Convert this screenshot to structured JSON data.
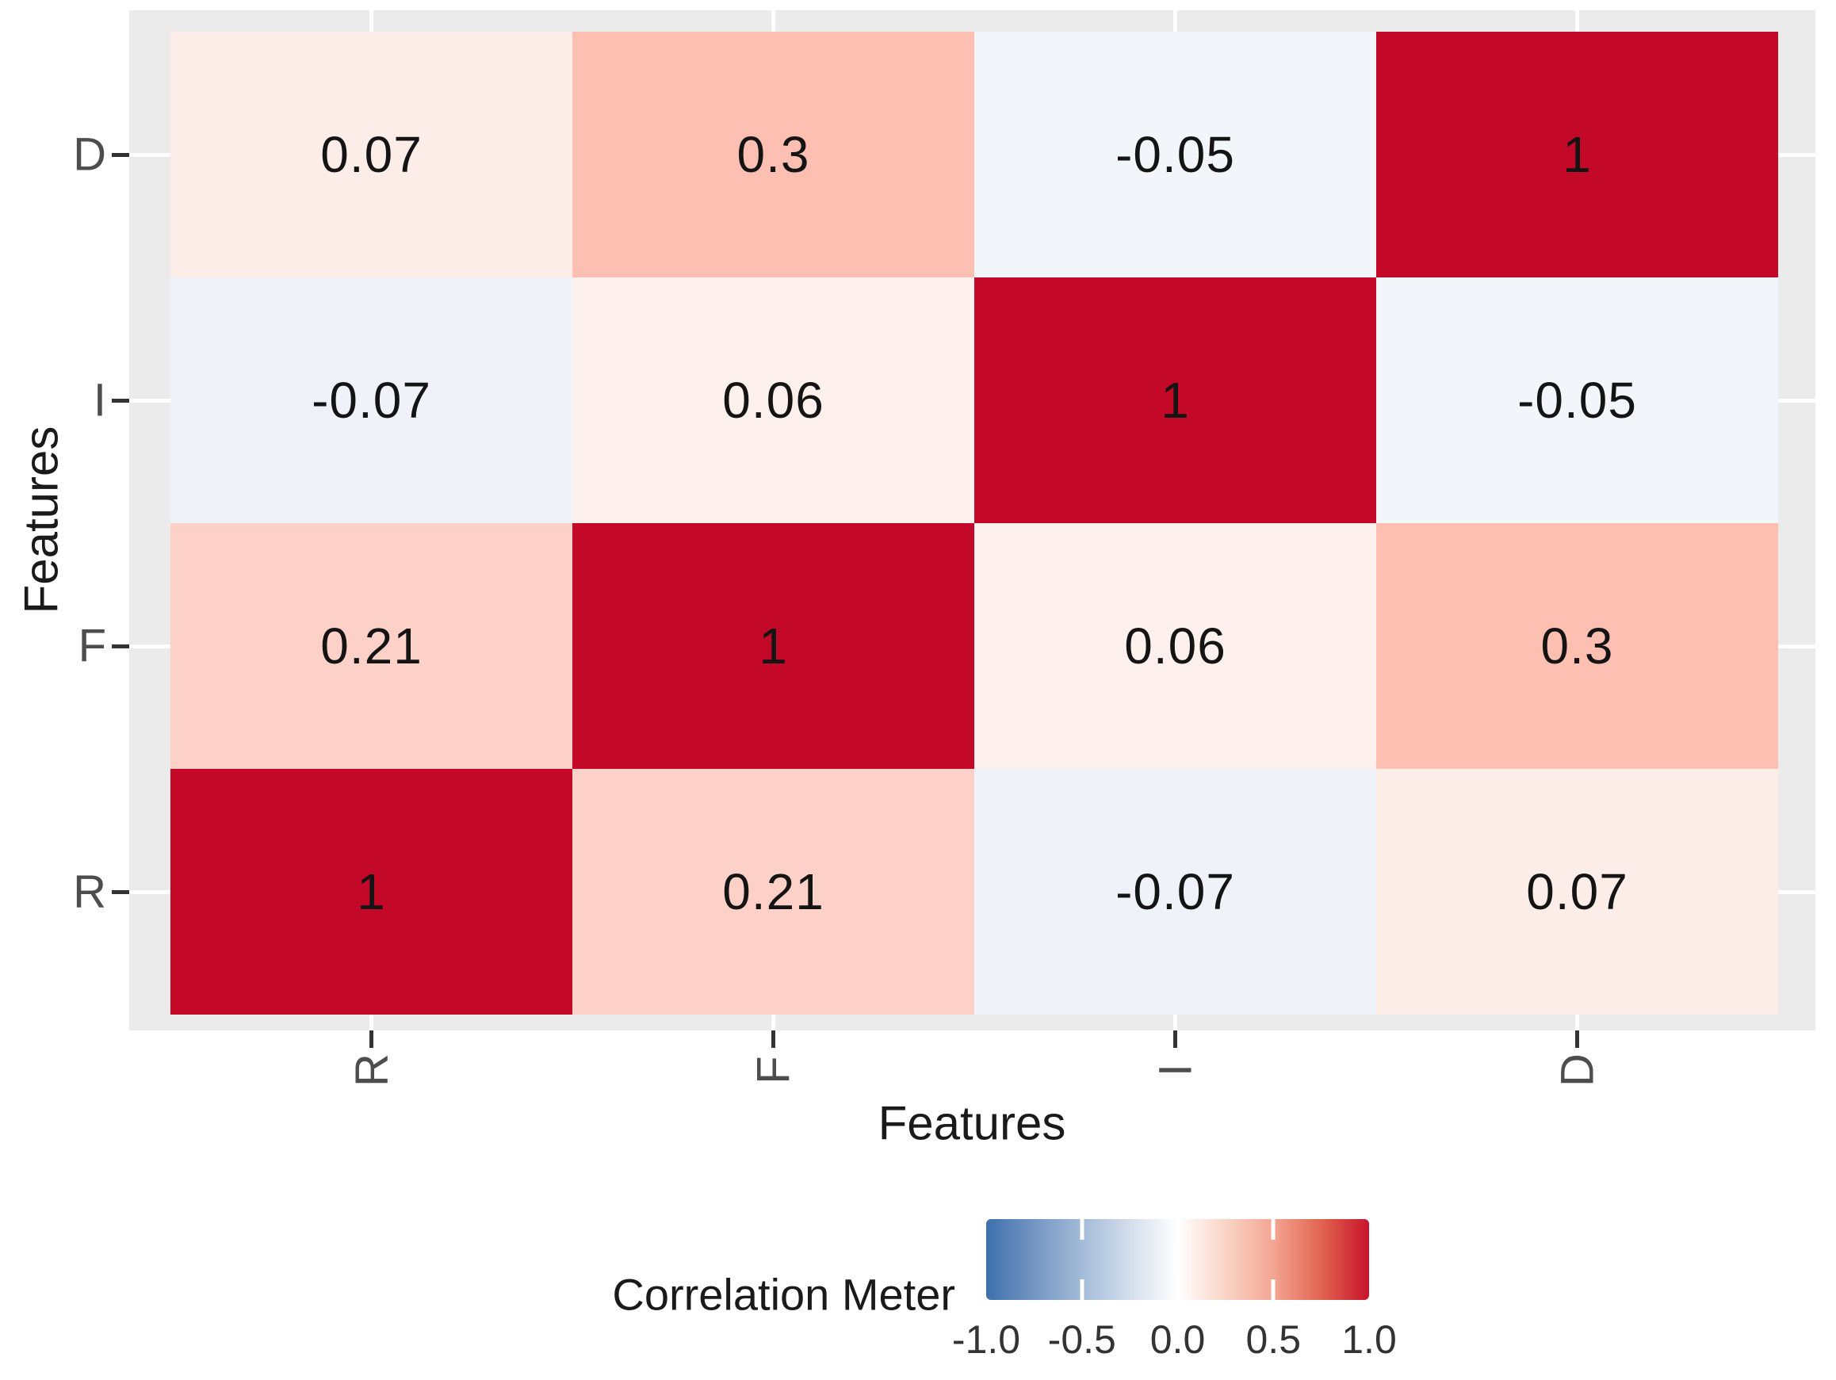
{
  "chart_data": {
    "type": "heatmap",
    "xlabel": "Features",
    "ylabel": "Features",
    "x_categories": [
      "R",
      "F",
      "I",
      "D"
    ],
    "y_categories_top_to_bottom": [
      "D",
      "I",
      "F",
      "R"
    ],
    "matrix_rows_top_to_bottom": [
      [
        0.07,
        0.3,
        -0.05,
        1
      ],
      [
        -0.07,
        0.06,
        1,
        -0.05
      ],
      [
        0.21,
        1,
        0.06,
        0.3
      ],
      [
        1,
        0.21,
        -0.07,
        0.07
      ]
    ],
    "cell_labels_top_to_bottom": [
      [
        "0.07",
        "0.3",
        "-0.05",
        "1"
      ],
      [
        "-0.07",
        "0.06",
        "1",
        "-0.05"
      ],
      [
        "0.21",
        "1",
        "0.06",
        "0.3"
      ],
      [
        "1",
        "0.21",
        "-0.07",
        "0.07"
      ]
    ],
    "legend": {
      "title": "Correlation Meter",
      "tick_labels": [
        "-1.0",
        "-0.5",
        "0.0",
        "0.5",
        "1.0"
      ],
      "tick_values": [
        -1,
        -0.5,
        0,
        0.5,
        1
      ],
      "range": [
        -1,
        1
      ],
      "position": "bottom"
    },
    "grid": true,
    "colors": {
      "panel_background": "#EBEBEB",
      "gridline": "#FFFFFF",
      "axis_text": "#4D4D4D",
      "tick_mark": "#333333",
      "cell_text": "#141414",
      "value_colors": {
        "1": "#C40828",
        "0.3": "#FCBFB2",
        "0.21": "#FED1C8",
        "0.07": "#FDEDE9",
        "0.06": "#FEF0EC",
        "-0.05": "#F2F5FA",
        "-0.07": "#EFF3F9"
      },
      "legend_gradient_stops": [
        {
          "pos": 0,
          "color": "#3D70AC"
        },
        {
          "pos": 0.125,
          "color": "#7495C3"
        },
        {
          "pos": 0.25,
          "color": "#A3BBD8"
        },
        {
          "pos": 0.375,
          "color": "#D3DEEC"
        },
        {
          "pos": 0.5,
          "color": "#FFFFFF"
        },
        {
          "pos": 0.625,
          "color": "#FAD4C6"
        },
        {
          "pos": 0.75,
          "color": "#F3A592"
        },
        {
          "pos": 0.875,
          "color": "#E26450"
        },
        {
          "pos": 1,
          "color": "#C8142B"
        }
      ]
    }
  }
}
